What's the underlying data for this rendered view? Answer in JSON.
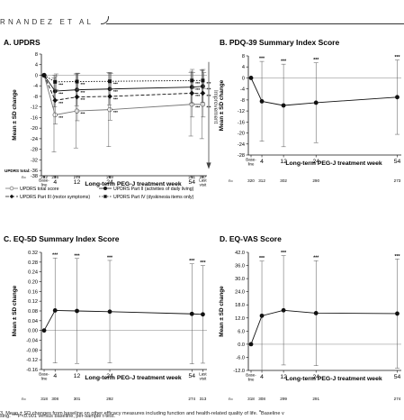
{
  "header": {
    "author": "RNANDEZ ET AL"
  },
  "caption": {
    "line1": "3. Mean ± SD changes from baseline on other efficacy measures including function and health-related quality of life. ",
    "line1_sup": "a",
    "line1_tail": "Baseline v",
    "line2": "sing. ***P<0.001 versus baseline, per-sample t-test."
  },
  "chart_data": [
    {
      "id": "A",
      "type": "line",
      "title": "A. UPDRS",
      "ylabel": "Mean ± SD change",
      "xlabel": "Long-term PEG-J treatment week",
      "ylim": [
        -38,
        8
      ],
      "yticks": [
        8,
        4,
        0,
        -4,
        -8,
        -12,
        -16,
        -20,
        -24,
        -28,
        -32,
        -36,
        -38
      ],
      "xticks": [
        {
          "pos": 0,
          "label": "Base-\nline"
        },
        {
          "pos": 4,
          "label": "4"
        },
        {
          "pos": 12,
          "label": "12"
        },
        {
          "pos": 24,
          "label": "24"
        },
        {
          "pos": 54,
          "label": "54"
        },
        {
          "pos": 58,
          "label": "Last\nvisit"
        }
      ],
      "arrow_label": "Improvement",
      "n_header": "UPDRS total:",
      "n_label": "n=",
      "n_values": [
        "292",
        "286",
        "279",
        "269",
        "251",
        "287"
      ],
      "series": [
        {
          "name": "UPDRS total score",
          "marker": "open-circle",
          "dash": "",
          "x": [
            0,
            4,
            12,
            24,
            54,
            58
          ],
          "y": [
            0,
            -15,
            -13.5,
            -13,
            -11,
            -11
          ],
          "sd": [
            0,
            14,
            14,
            14,
            12,
            13
          ]
        },
        {
          "name": "UPDRS Part II (activities of daily living)",
          "marker": "circle",
          "dash": "",
          "x": [
            0,
            4,
            12,
            24,
            54,
            58
          ],
          "y": [
            0,
            -6,
            -5.5,
            -5.2,
            -4.5,
            -4.2
          ],
          "sd": [
            0,
            6,
            6,
            6,
            6,
            6
          ]
        },
        {
          "name": "UPDRS Part III (motor symptoms)",
          "marker": "diamond",
          "dash": "4,2",
          "x": [
            0,
            4,
            12,
            24,
            54,
            58
          ],
          "y": [
            0,
            -9.5,
            -8.2,
            -8,
            -6.8,
            -6.8
          ],
          "sd": [
            0,
            9,
            9,
            9,
            9,
            9
          ]
        },
        {
          "name": "UPDRS Part IV (dyskinesia items only)",
          "marker": "square",
          "dash": "1.5,1.5",
          "x": [
            0,
            4,
            12,
            24,
            54,
            58
          ],
          "y": [
            0,
            -2.5,
            -2.4,
            -2.3,
            -2,
            -2
          ],
          "sd": [
            0,
            3,
            3,
            3,
            3,
            3
          ]
        }
      ],
      "sig_label": "***"
    },
    {
      "id": "B",
      "type": "line",
      "title": "B. PDQ-39 Summary Index Score",
      "ylabel": "Mean ± SD change",
      "xlabel": "Long-term PEG-J treatment week",
      "ylim": [
        -28,
        8
      ],
      "yticks": [
        8,
        4,
        0,
        -4,
        -8,
        -12,
        -16,
        -20,
        -24,
        -28
      ],
      "xticks": [
        {
          "pos": 0,
          "label": "Base-\nline"
        },
        {
          "pos": 4,
          "label": "4"
        },
        {
          "pos": 12,
          "label": "12"
        },
        {
          "pos": 24,
          "label": "24"
        },
        {
          "pos": 54,
          "label": "54"
        }
      ],
      "n_label": "n=",
      "n_values": [
        "320",
        "312",
        "302",
        "290",
        "273"
      ],
      "series": [
        {
          "name": "PDQ-39 Summary Index Score",
          "marker": "circle",
          "x": [
            0,
            4,
            12,
            24,
            54
          ],
          "y": [
            0,
            -8.5,
            -10,
            -9,
            -7
          ],
          "sd": [
            0,
            14.5,
            15,
            14.5,
            13.5
          ]
        }
      ],
      "sig_label": "***"
    },
    {
      "id": "C",
      "type": "line",
      "title": "C. EQ-5D Summary Index Score",
      "ylabel": "Mean ± SD change",
      "xlabel": "Long-term PEG-J treatment week",
      "ylim": [
        -0.16,
        0.32
      ],
      "yticks": [
        0.32,
        0.28,
        0.24,
        0.2,
        0.16,
        0.12,
        0.08,
        0.04,
        0.0,
        -0.04,
        -0.08,
        -0.12,
        -0.16
      ],
      "ytick_decimals": 2,
      "xticks": [
        {
          "pos": 0,
          "label": "Base-\nline"
        },
        {
          "pos": 4,
          "label": "4"
        },
        {
          "pos": 12,
          "label": "12"
        },
        {
          "pos": 24,
          "label": "24"
        },
        {
          "pos": 54,
          "label": "54"
        },
        {
          "pos": 58,
          "label": "Last\nvisit"
        }
      ],
      "n_label": "n=",
      "n_values": [
        "318",
        "308",
        "301",
        "292",
        "274",
        "313"
      ],
      "series": [
        {
          "name": "EQ-5D Summary Index Score",
          "marker": "circle",
          "x": [
            0,
            4,
            12,
            24,
            54,
            58
          ],
          "y": [
            0,
            0.082,
            0.08,
            0.077,
            0.068,
            0.066
          ],
          "sd": [
            0,
            0.215,
            0.215,
            0.21,
            0.205,
            0.2
          ]
        }
      ],
      "sig_label": "***"
    },
    {
      "id": "D",
      "type": "line",
      "title": "D. EQ-VAS Score",
      "ylabel": "Mean ± SD change",
      "xlabel": "Long-term PEG-J treatment week",
      "ylim": [
        -12,
        42
      ],
      "yticks": [
        42.0,
        36.0,
        30.0,
        24.0,
        18.0,
        12.0,
        6.0,
        0.0,
        -6.0,
        -12.0
      ],
      "ytick_decimals": 1,
      "xticks": [
        {
          "pos": 0,
          "label": "Base-\nline"
        },
        {
          "pos": 4,
          "label": "4"
        },
        {
          "pos": 12,
          "label": "12"
        },
        {
          "pos": 24,
          "label": "24"
        },
        {
          "pos": 54,
          "label": "54"
        }
      ],
      "n_label": "n=",
      "n_values": [
        "318",
        "308",
        "299",
        "291",
        "274"
      ],
      "series": [
        {
          "name": "EQ-VAS Score",
          "marker": "circle",
          "x": [
            0,
            4,
            12,
            24,
            54
          ],
          "y": [
            0,
            13,
            15.5,
            14.2,
            14
          ],
          "sd": [
            0,
            25,
            25,
            24,
            25
          ]
        }
      ],
      "sig_label": "***"
    }
  ]
}
